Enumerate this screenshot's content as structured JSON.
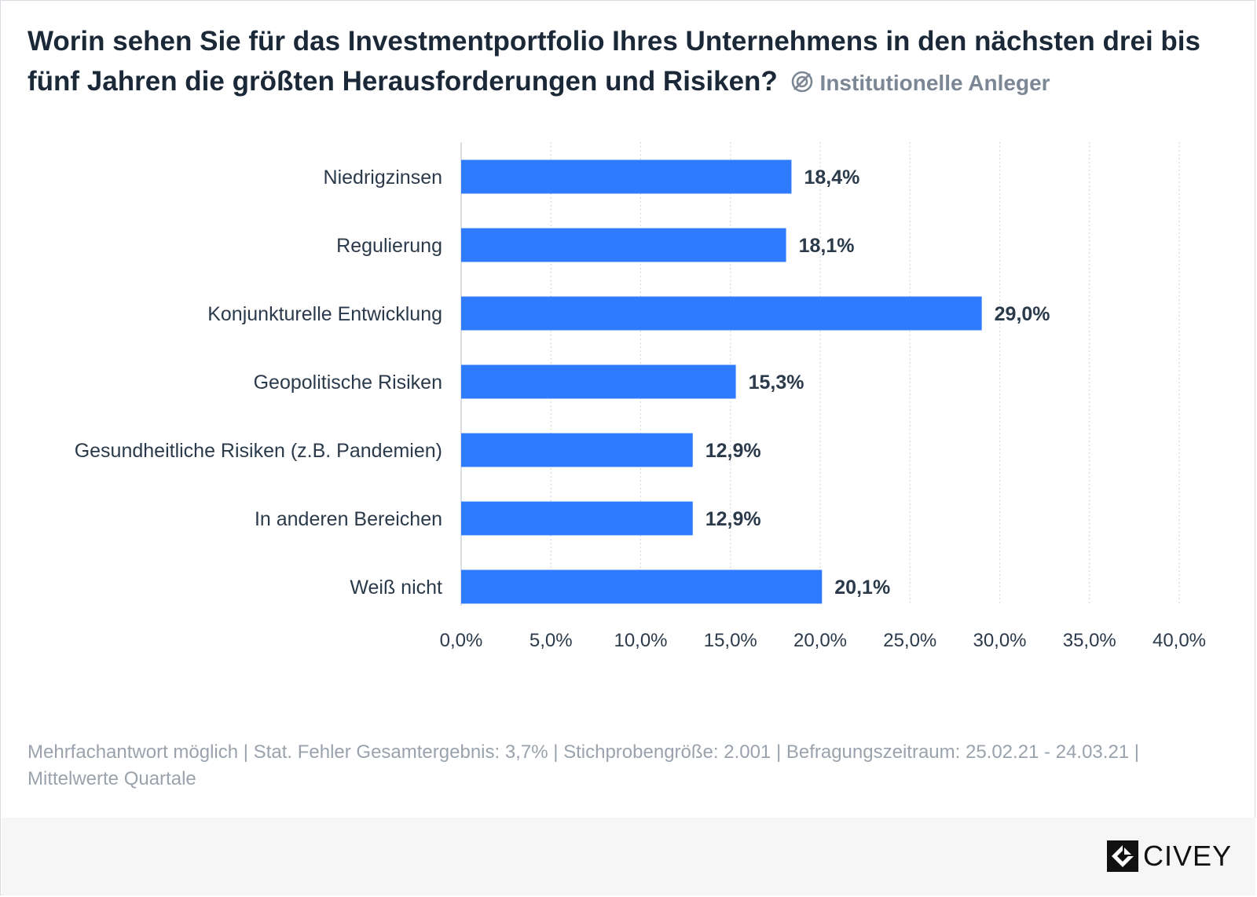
{
  "header": {
    "question": "Worin sehen Sie für das Investmentportfolio Ihres Unternehmens in den nächsten drei bis fünf Jahren die größten Herausforderungen und Risiken?",
    "audience_icon": "target-group-icon",
    "audience": "Institutionelle Anleger"
  },
  "chart_data": {
    "type": "bar",
    "orientation": "horizontal",
    "title": "Worin sehen Sie für das Investmentportfolio Ihres Unternehmens in den nächsten drei bis fünf Jahren die größten Herausforderungen und Risiken?",
    "categories": [
      "Niedrigzinsen",
      "Regulierung",
      "Konjunkturelle Entwicklung",
      "Geopolitische Risiken",
      "Gesundheitliche Risiken (z.B. Pandemien)",
      "In anderen Bereichen",
      "Weiß nicht"
    ],
    "values": [
      18.4,
      18.1,
      29.0,
      15.3,
      12.9,
      12.9,
      20.1
    ],
    "value_labels": [
      "18,4%",
      "18,1%",
      "29,0%",
      "15,3%",
      "12,9%",
      "12,9%",
      "20,1%"
    ],
    "xlim": [
      0,
      40
    ],
    "xticks": [
      0,
      5,
      10,
      15,
      20,
      25,
      30,
      35,
      40
    ],
    "xtick_labels": [
      "0,0%",
      "5,0%",
      "10,0%",
      "15,0%",
      "20,0%",
      "25,0%",
      "30,0%",
      "35,0%",
      "40,0%"
    ],
    "xlabel": "",
    "ylabel": "",
    "grid": "vertical dotted",
    "bar_color": "#2f7bff"
  },
  "footnote": "Mehrfachantwort möglich | Stat. Fehler Gesamtergebnis: 3,7% | Stichprobengröße: 2.001 | Befragungszeitraum: 25.02.21 - 24.03.21 | Mittelwerte Quartale",
  "branding": {
    "logo_icon": "civey-logo-icon",
    "name": "CIVEY"
  },
  "colors": {
    "bar": "#2f7bff",
    "title": "#1b2838",
    "subtitle": "#7b8794",
    "label": "#2b3a4a",
    "footnote": "#9aa3ad",
    "footer_bg": "#f6f6f6"
  }
}
